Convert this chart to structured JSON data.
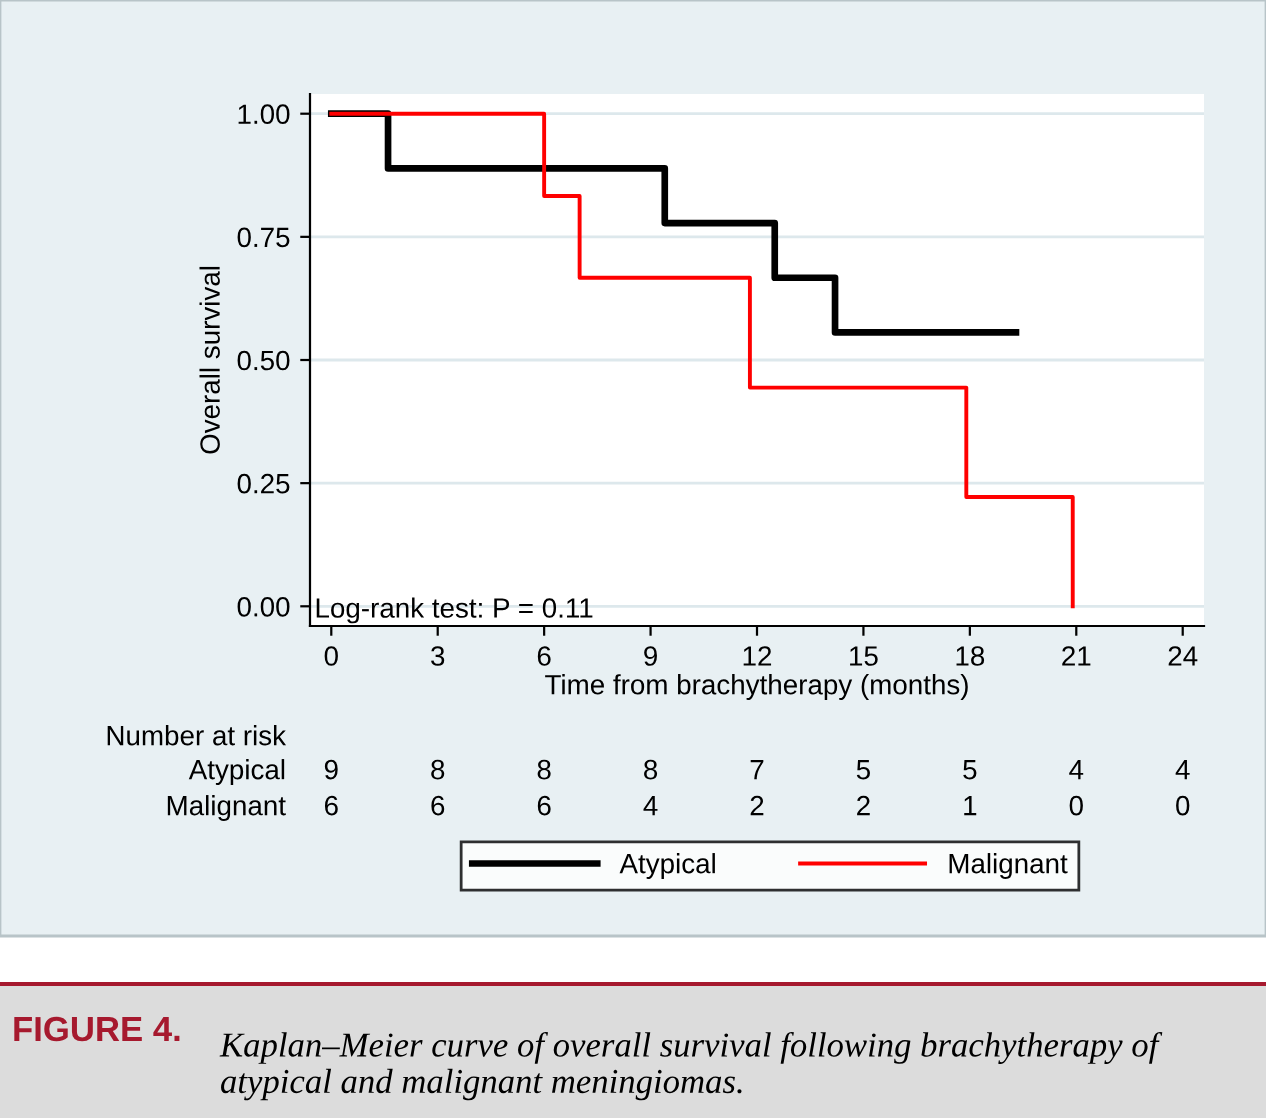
{
  "chart_data": {
    "type": "step",
    "xlabel": "Time from brachytherapy (months)",
    "ylabel": "Overall survival",
    "series": [
      {
        "name": "Atypical",
        "color": "#000000",
        "x": [
          0,
          1.6,
          9.4,
          12.5,
          14.2,
          19.3
        ],
        "values": [
          1,
          0.889,
          0.778,
          0.667,
          0.556,
          0.556
        ]
      },
      {
        "name": "Malignant",
        "color": "#ff0000",
        "x": [
          0,
          6,
          7,
          11.8,
          17.9,
          20.9
        ],
        "values": [
          1,
          0.833,
          0.667,
          0.444,
          0.222,
          0
        ]
      }
    ],
    "xlim": [
      -0.6,
      24.6
    ],
    "xticks": [
      0,
      3,
      6,
      9,
      12,
      15,
      18,
      21,
      24
    ],
    "ylim": [
      -0.04,
      1.04
    ],
    "yticks": [
      {
        "value": 0,
        "label": "0.00"
      },
      {
        "value": 0.25,
        "label": "0.25"
      },
      {
        "value": 0.5,
        "label": "0.50"
      },
      {
        "value": 0.75,
        "label": "0.75"
      },
      {
        "value": 1,
        "label": "1.00"
      }
    ],
    "grid": "y",
    "legend": "bottom",
    "line_style": "solid",
    "marker": "none",
    "annotations": [
      "Log-rank test: P = 0.11",
      "Number at risk",
      "Atypical",
      "9 8 8 8 7 5 5 4 4",
      "Malignant",
      "6 6 6 4 2 2 1 0 0",
      "FIGURE 4.",
      "Kaplan–Meier curve of overall survival following brachytherapy of atypical and malignant meningiomas."
    ]
  }
}
